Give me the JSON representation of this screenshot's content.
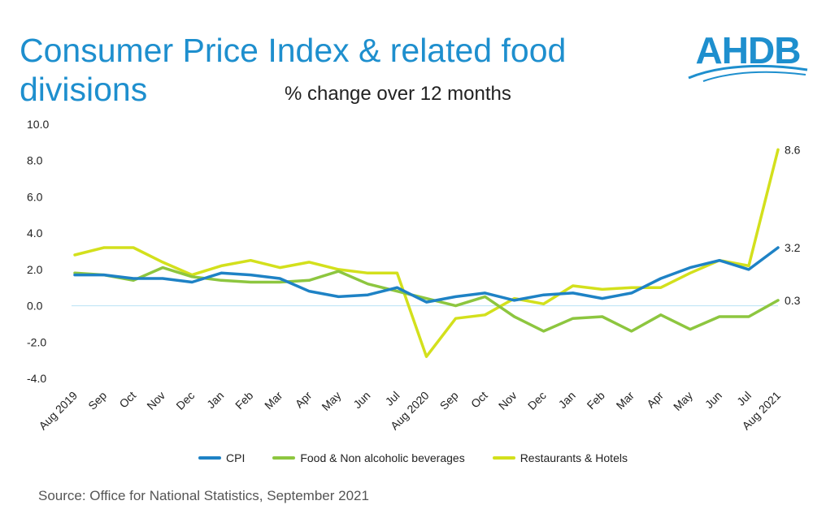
{
  "page": {
    "title": "Consumer Price Index & related food divisions",
    "subtitle": "% change over 12 months",
    "logo_text": "AHDB",
    "source": "Source: Office for National Statistics, September 2021"
  },
  "colors": {
    "title": "#1e8fce",
    "cpi": "#1e82c5",
    "food": "#8dc63f",
    "restaurants": "#d3e01c",
    "zero_line": "#b9e3f5"
  },
  "chart_data": {
    "type": "line",
    "title": "% change over 12 months",
    "xlabel": "",
    "ylabel": "",
    "ylim": [
      -4.0,
      10.0
    ],
    "yticks": [
      "10.0",
      "8.0",
      "6.0",
      "4.0",
      "2.0",
      "0.0",
      "-2.0",
      "-4.0"
    ],
    "ytick_values": [
      10,
      8,
      6,
      4,
      2,
      0,
      -2,
      -4
    ],
    "categories": [
      "Aug 2019",
      "Sep",
      "Oct",
      "Nov",
      "Dec",
      "Jan",
      "Feb",
      "Mar",
      "Apr",
      "May",
      "Jun",
      "Jul",
      "Aug 2020",
      "Sep",
      "Oct",
      "Nov",
      "Dec",
      "Jan",
      "Feb",
      "Mar",
      "Apr",
      "May",
      "Jun",
      "Jul",
      "Aug 2021"
    ],
    "series": [
      {
        "name": "CPI",
        "color_key": "cpi",
        "end_label": "3.2",
        "values": [
          1.7,
          1.7,
          1.5,
          1.5,
          1.3,
          1.8,
          1.7,
          1.5,
          0.8,
          0.5,
          0.6,
          1.0,
          0.2,
          0.5,
          0.7,
          0.3,
          0.6,
          0.7,
          0.4,
          0.7,
          1.5,
          2.1,
          2.5,
          2.0,
          3.2
        ]
      },
      {
        "name": "Food & Non alcoholic beverages",
        "color_key": "food",
        "end_label": "0.3",
        "values": [
          1.8,
          1.7,
          1.4,
          2.1,
          1.6,
          1.4,
          1.3,
          1.3,
          1.4,
          1.9,
          1.2,
          0.8,
          0.4,
          0.0,
          0.5,
          -0.6,
          -1.4,
          -0.7,
          -0.6,
          -1.4,
          -0.5,
          -1.3,
          -0.6,
          -0.6,
          0.3
        ]
      },
      {
        "name": "Restaurants & Hotels",
        "color_key": "restaurants",
        "end_label": "8.6",
        "values": [
          2.8,
          3.2,
          3.2,
          2.4,
          1.7,
          2.2,
          2.5,
          2.1,
          2.4,
          2.0,
          1.8,
          1.8,
          -2.8,
          -0.7,
          -0.5,
          0.4,
          0.1,
          1.1,
          0.9,
          1.0,
          1.0,
          1.8,
          2.5,
          2.2,
          8.6
        ]
      }
    ],
    "legend_position": "bottom"
  }
}
